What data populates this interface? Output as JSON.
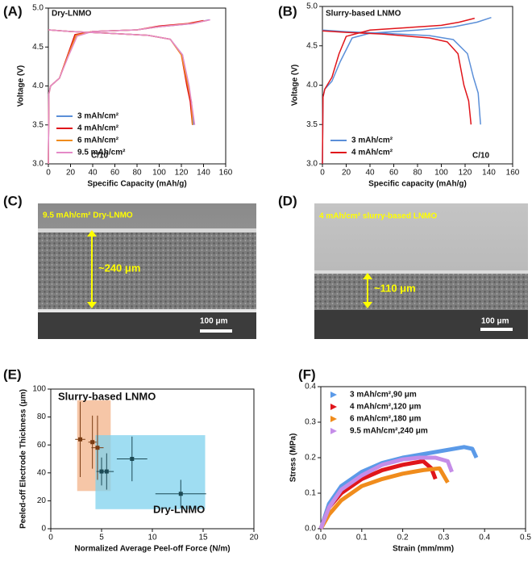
{
  "chart_data": [
    {
      "type": "line",
      "label": "(A)",
      "title": "Dry-LNMO",
      "x_label": "Specific Capacity (mAh/g)",
      "y_label": "Voltage (V)",
      "xlim": [
        0,
        160
      ],
      "xticks": [
        0,
        20,
        40,
        60,
        80,
        100,
        120,
        140,
        160
      ],
      "ylim": [
        3,
        5
      ],
      "yticks": [
        {
          "value": 3,
          "label": "3.0"
        },
        3.5,
        {
          "value": 4,
          "label": "4.0"
        },
        4.5,
        {
          "value": 5,
          "label": "5.0"
        }
      ],
      "legend": "lower left",
      "annotations": [
        "C/10"
      ],
      "series": [
        {
          "name": "3 mAh/cm²",
          "color": "#5b8fd8",
          "x": [
            0,
            0.5,
            2,
            10,
            18,
            25,
            40,
            80,
            100,
            130,
            145,
            null,
            0,
            20,
            50,
            90,
            110,
            121,
            126,
            129,
            131
          ],
          "values": [
            3.0,
            3.9,
            4.0,
            4.1,
            4.4,
            4.65,
            4.7,
            4.72,
            4.76,
            4.8,
            4.85,
            null,
            4.72,
            4.7,
            4.68,
            4.65,
            4.6,
            4.4,
            4.0,
            3.8,
            3.5
          ]
        },
        {
          "name": "4 mAh/cm²",
          "color": "#e0151b",
          "x": [
            0,
            0.5,
            2,
            10,
            18,
            24,
            40,
            80,
            100,
            125,
            140,
            null,
            0,
            20,
            50,
            90,
            110,
            120,
            125,
            128,
            130
          ],
          "values": [
            3.0,
            3.9,
            4.0,
            4.1,
            4.42,
            4.66,
            4.7,
            4.72,
            4.77,
            4.8,
            4.84,
            null,
            4.72,
            4.7,
            4.68,
            4.65,
            4.6,
            4.4,
            4.0,
            3.8,
            3.5
          ]
        },
        {
          "name": "6 mAh/cm²",
          "color": "#f08c1c",
          "x": [
            0,
            0.5,
            2,
            10,
            18,
            25,
            40,
            80,
            100,
            128,
            143,
            null,
            0,
            20,
            50,
            90,
            110,
            120,
            126,
            129,
            130
          ],
          "values": [
            3.0,
            3.9,
            4.0,
            4.1,
            4.4,
            4.65,
            4.7,
            4.72,
            4.76,
            4.8,
            4.84,
            null,
            4.72,
            4.7,
            4.68,
            4.65,
            4.6,
            4.4,
            4.0,
            3.8,
            3.5
          ]
        },
        {
          "name": "9.5 mAh/cm²",
          "color": "#e58ac8",
          "x": [
            0,
            0.5,
            2,
            10,
            18,
            26,
            40,
            80,
            100,
            130,
            146,
            null,
            0,
            20,
            50,
            90,
            110,
            121,
            127,
            129,
            132
          ],
          "values": [
            3.0,
            3.9,
            4.0,
            4.1,
            4.38,
            4.64,
            4.7,
            4.72,
            4.76,
            4.8,
            4.85,
            null,
            4.72,
            4.7,
            4.68,
            4.65,
            4.6,
            4.4,
            4.0,
            3.8,
            3.5
          ]
        }
      ]
    },
    {
      "type": "line",
      "label": "(B)",
      "title": "Slurry-based LNMO",
      "x_label": "Specific capacity (mAh/g)",
      "y_label": "Voltage (V)",
      "xlim": [
        0,
        160
      ],
      "xticks": [
        0,
        20,
        40,
        60,
        80,
        100,
        120,
        140,
        160
      ],
      "ylim": [
        3,
        5
      ],
      "yticks": [
        {
          "value": 3,
          "label": "3.0"
        },
        3.5,
        {
          "value": 4,
          "label": "4.0"
        },
        4.5,
        {
          "value": 5,
          "label": "5.0"
        }
      ],
      "legend": "lower left",
      "annotations": [
        "C/10"
      ],
      "series": [
        {
          "name": "3 mAh/cm²",
          "color": "#5b8fd8",
          "x": [
            0,
            0.5,
            2,
            8,
            15,
            25,
            40,
            80,
            110,
            130,
            142,
            null,
            0,
            20,
            50,
            90,
            110,
            122,
            127,
            131,
            133
          ],
          "values": [
            3.0,
            3.85,
            3.95,
            4.05,
            4.3,
            4.6,
            4.66,
            4.7,
            4.74,
            4.8,
            4.86,
            null,
            4.7,
            4.68,
            4.66,
            4.63,
            4.58,
            4.4,
            4.1,
            3.9,
            3.5
          ]
        },
        {
          "name": "4 mAh/cm²",
          "color": "#e0151b",
          "x": [
            0,
            0.5,
            2,
            8,
            14,
            20,
            40,
            70,
            100,
            115,
            128,
            null,
            0,
            20,
            50,
            90,
            105,
            114,
            119,
            123,
            125
          ],
          "values": [
            3.0,
            3.85,
            3.95,
            4.1,
            4.4,
            4.62,
            4.7,
            4.73,
            4.76,
            4.8,
            4.85,
            null,
            4.69,
            4.67,
            4.65,
            4.6,
            4.55,
            4.4,
            4.0,
            3.8,
            3.5
          ]
        }
      ]
    },
    {
      "type": "scatter",
      "label": "(E)",
      "x_label": "Normalized Average Peel-off Force (N/m)",
      "y_label": "Peeled-off Electrode Thickness (μm)",
      "xlim": [
        0,
        20
      ],
      "xticks": [
        0,
        5,
        10,
        15,
        20
      ],
      "ylim": [
        0,
        100
      ],
      "yticks": [
        0,
        20,
        40,
        60,
        80,
        100
      ],
      "regions": [
        {
          "name": "Slurry-based LNMO",
          "color": "#f3b38a",
          "marker_color": "#7a3b12",
          "x_range": [
            2.6,
            5.9
          ],
          "y_range": [
            27,
            92
          ],
          "x": [
            2.9,
            4.1,
            4.6
          ],
          "values": [
            64,
            62,
            58
          ],
          "xerr": [
            0.5,
            0.4,
            0.6
          ],
          "yerr": [
            27,
            19,
            23
          ]
        },
        {
          "name": "Dry-LNMO",
          "color": "#7fd1ee",
          "marker_color": "#1c4a55",
          "x_range": [
            4.4,
            15.2
          ],
          "y_range": [
            14,
            67
          ],
          "x": [
            5.0,
            5.5,
            8.0,
            12.8
          ],
          "values": [
            41,
            41,
            50,
            25
          ],
          "xerr": [
            0.5,
            0.7,
            1.5,
            2.5
          ],
          "yerr": [
            10,
            13,
            16,
            10
          ]
        }
      ]
    },
    {
      "type": "line",
      "label": "(F)",
      "x_label": "Strain (mm/mm)",
      "y_label": "Stress (MPa)",
      "xlim": [
        0,
        0.5
      ],
      "xticks": [
        {
          "value": 0,
          "label": "0.0"
        },
        0.1,
        0.2,
        0.3,
        0.4,
        0.5
      ],
      "ylim": [
        0,
        0.4
      ],
      "yticks": [
        {
          "value": 0,
          "label": "0.0"
        },
        0.1,
        0.2,
        0.3,
        0.4
      ],
      "legend": "upper left",
      "marker": "triangle",
      "series": [
        {
          "name": "3 mAh/cm²,90 μm",
          "color": "#5b9ae8",
          "x": [
            0,
            0.02,
            0.05,
            0.1,
            0.15,
            0.2,
            0.25,
            0.3,
            0.35,
            0.37,
            0.38
          ],
          "values": [
            0,
            0.07,
            0.12,
            0.16,
            0.185,
            0.2,
            0.21,
            0.22,
            0.23,
            0.225,
            0.2
          ]
        },
        {
          "name": "4 mAh/cm²,120 μm",
          "color": "#e0151b",
          "x": [
            0,
            0.02,
            0.05,
            0.1,
            0.15,
            0.2,
            0.25,
            0.27,
            0.28
          ],
          "values": [
            0,
            0.06,
            0.1,
            0.14,
            0.165,
            0.18,
            0.19,
            0.17,
            0.14
          ]
        },
        {
          "name": "6 mAh/cm²,180 μm",
          "color": "#f08c1c",
          "x": [
            0,
            0.02,
            0.05,
            0.1,
            0.15,
            0.2,
            0.25,
            0.29,
            0.3,
            0.31
          ],
          "values": [
            0,
            0.04,
            0.08,
            0.12,
            0.14,
            0.155,
            0.165,
            0.17,
            0.15,
            0.13
          ]
        },
        {
          "name": "9.5 mAh/cm²,240 μm",
          "color": "#c58de8",
          "x": [
            0,
            0.02,
            0.05,
            0.1,
            0.15,
            0.2,
            0.24,
            0.28,
            0.31,
            0.32
          ],
          "values": [
            0,
            0.06,
            0.11,
            0.15,
            0.18,
            0.195,
            0.2,
            0.2,
            0.19,
            0.16
          ]
        }
      ]
    }
  ],
  "images": [
    {
      "label": "(C)",
      "caption": "9.5 mAh/cm² Dry-LNMO",
      "thickness": "~240 μm",
      "scale_bar": "100 μm"
    },
    {
      "label": "(D)",
      "caption": "4 mAh/cm² slurry-based LNMO",
      "thickness": "~110 μm",
      "scale_bar": "100 μm"
    }
  ]
}
